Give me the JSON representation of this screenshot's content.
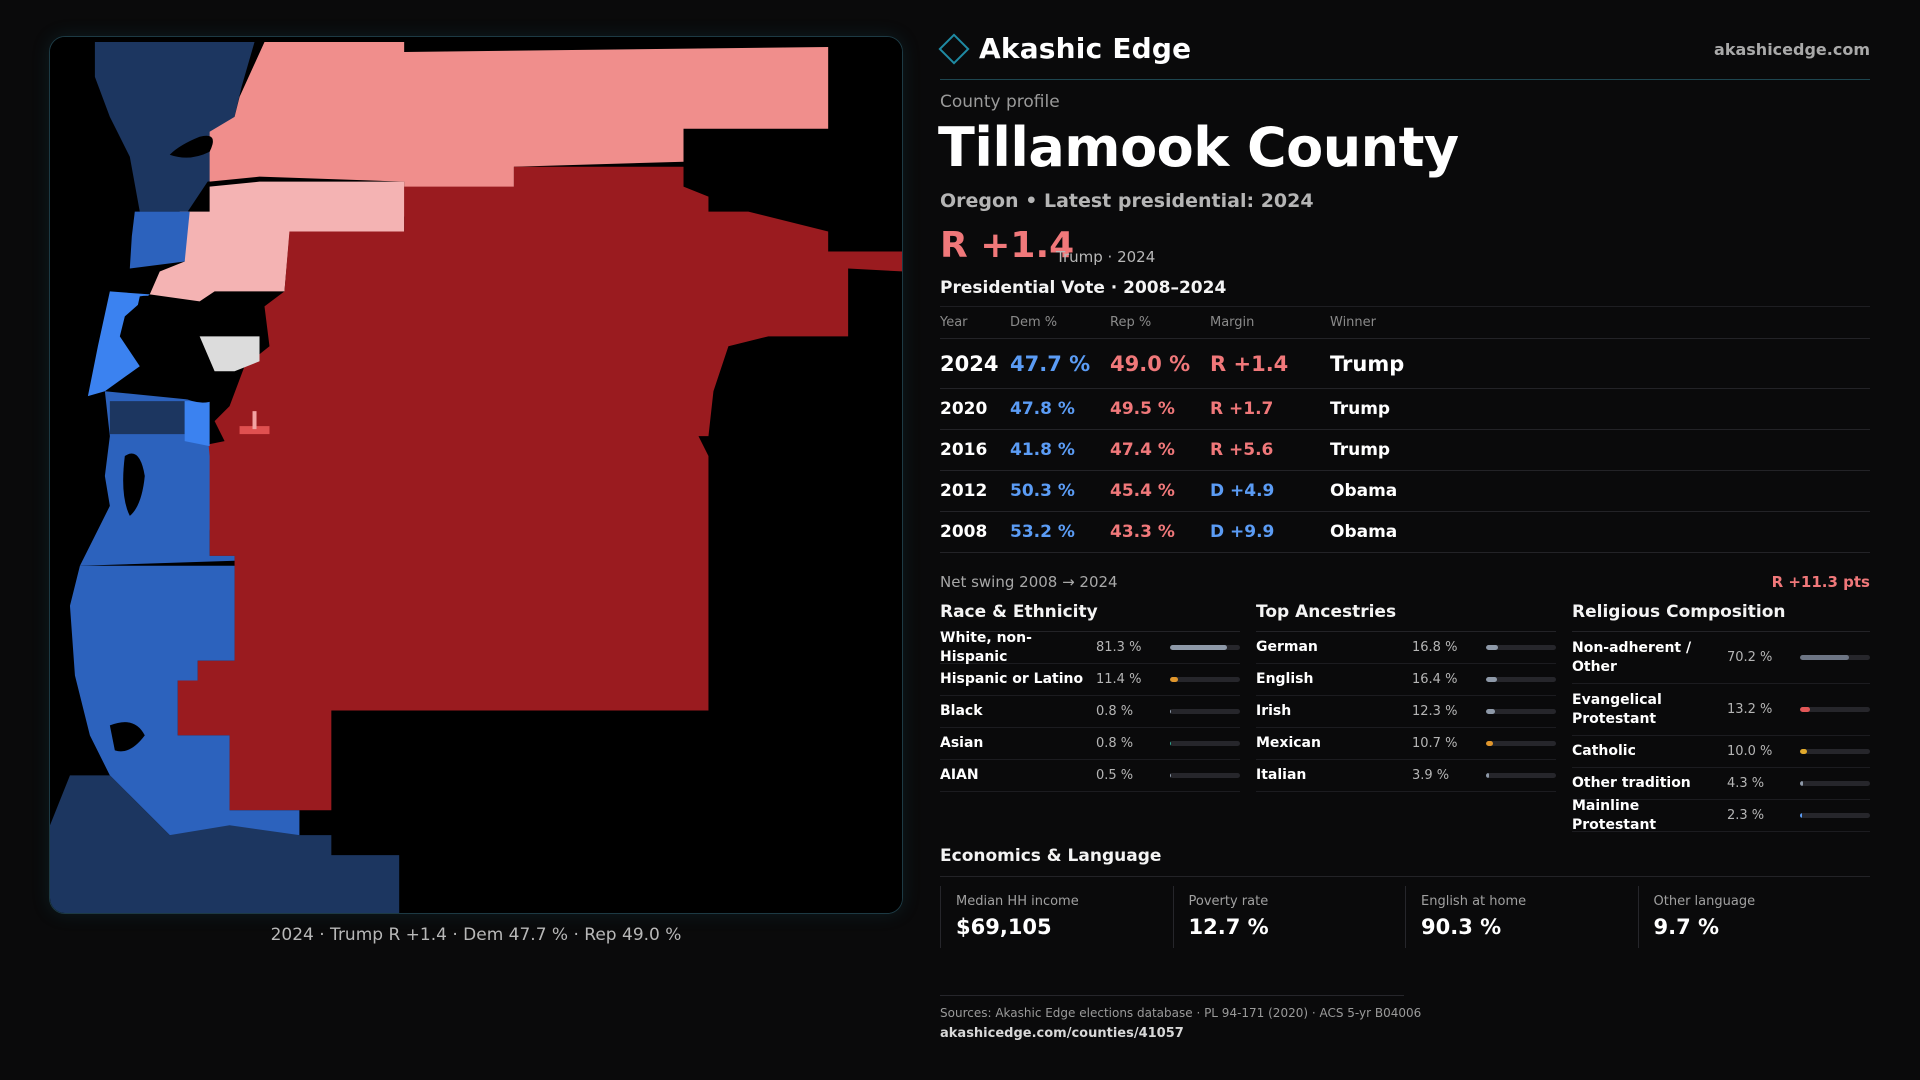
{
  "brand": {
    "name": "Akashic Edge",
    "site": "akashicedge.com"
  },
  "profile": {
    "eyebrow": "County profile",
    "title": "Tillamook County",
    "subtitle": "Oregon • Latest presidential: 2024",
    "headline_margin": "R +1.4",
    "headline_note": "Trump · 2024"
  },
  "map": {
    "caption": "2024 · Trump R +1.4 · Dem 47.7 % · Rep 49.0 %",
    "colors": {
      "strong_dem": "#1c3660",
      "dem": "#2c62bd",
      "lean_dem": "#3b82f0",
      "tossup": "#dcdcdc",
      "lean_rep": "#f08e8c",
      "light_rep": "#f4b3b3",
      "strong_rep": "#9a1b1f",
      "water": "#000000"
    }
  },
  "vote": {
    "title": "Presidential Vote · 2008–2024",
    "headers": {
      "year": "Year",
      "dem": "Dem %",
      "rep": "Rep %",
      "margin": "Margin",
      "winner": "Winner"
    },
    "rows": [
      {
        "year": "2024",
        "dem": "47.7 %",
        "rep": "49.0 %",
        "margin": "R +1.4",
        "party": "rep",
        "winner": "Trump"
      },
      {
        "year": "2020",
        "dem": "47.8 %",
        "rep": "49.5 %",
        "margin": "R +1.7",
        "party": "rep",
        "winner": "Trump"
      },
      {
        "year": "2016",
        "dem": "41.8 %",
        "rep": "47.4 %",
        "margin": "R +5.6",
        "party": "rep",
        "winner": "Trump"
      },
      {
        "year": "2012",
        "dem": "50.3 %",
        "rep": "45.4 %",
        "margin": "D +4.9",
        "party": "dem",
        "winner": "Obama"
      },
      {
        "year": "2008",
        "dem": "53.2 %",
        "rep": "43.3 %",
        "margin": "D +9.9",
        "party": "dem",
        "winner": "Obama"
      }
    ],
    "swing_label": "Net swing 2008 → 2024",
    "swing_value": "R +11.3 pts"
  },
  "race": {
    "title": "Race & Ethnicity",
    "items": [
      {
        "label": "White, non-Hispanic",
        "value": "81.3 %",
        "pct": 81.3,
        "color": "#8e99a8"
      },
      {
        "label": "Hispanic or Latino",
        "value": "11.4 %",
        "pct": 11.4,
        "color": "#e0962c"
      },
      {
        "label": "Black",
        "value": "0.8 %",
        "pct": 0.8,
        "color": "#8e99a8"
      },
      {
        "label": "Asian",
        "value": "0.8 %",
        "pct": 0.8,
        "color": "#2fa58e"
      },
      {
        "label": "AIAN",
        "value": "0.5 %",
        "pct": 0.5,
        "color": "#8e99a8"
      }
    ]
  },
  "ancestry": {
    "title": "Top Ancestries",
    "items": [
      {
        "label": "German",
        "value": "16.8 %",
        "pct": 16.8,
        "color": "#8e99a8"
      },
      {
        "label": "English",
        "value": "16.4 %",
        "pct": 16.4,
        "color": "#8e99a8"
      },
      {
        "label": "Irish",
        "value": "12.3 %",
        "pct": 12.3,
        "color": "#8e99a8"
      },
      {
        "label": "Mexican",
        "value": "10.7 %",
        "pct": 10.7,
        "color": "#e0962c"
      },
      {
        "label": "Italian",
        "value": "3.9 %",
        "pct": 3.9,
        "color": "#8e99a8"
      }
    ]
  },
  "religion": {
    "title": "Religious Composition",
    "items": [
      {
        "label": "Non-adherent / Other",
        "value": "70.2 %",
        "pct": 70.2,
        "color": "#6d7584",
        "tall": true
      },
      {
        "label": "Evangelical Protestant",
        "value": "13.2 %",
        "pct": 13.2,
        "color": "#e25757",
        "tall": true
      },
      {
        "label": "Catholic",
        "value": "10.0 %",
        "pct": 10.0,
        "color": "#e0a92c",
        "tall": false
      },
      {
        "label": "Other tradition",
        "value": "4.3 %",
        "pct": 4.3,
        "color": "#8e99a8",
        "tall": false
      },
      {
        "label": "Mainline Protestant",
        "value": "2.3 %",
        "pct": 2.3,
        "color": "#5b9cf5",
        "tall": false
      }
    ]
  },
  "economics": {
    "title": "Economics & Language",
    "cells": [
      {
        "label": "Median HH income",
        "value": "$69,105"
      },
      {
        "label": "Poverty rate",
        "value": "12.7 %"
      },
      {
        "label": "English at home",
        "value": "90.3 %"
      },
      {
        "label": "Other language",
        "value": "9.7 %"
      }
    ]
  },
  "footer": {
    "sources": "Sources: Akashic Edge elections database · PL 94-171 (2020) · ACS 5-yr B04006",
    "url": "akashicedge.com/counties/41057"
  }
}
